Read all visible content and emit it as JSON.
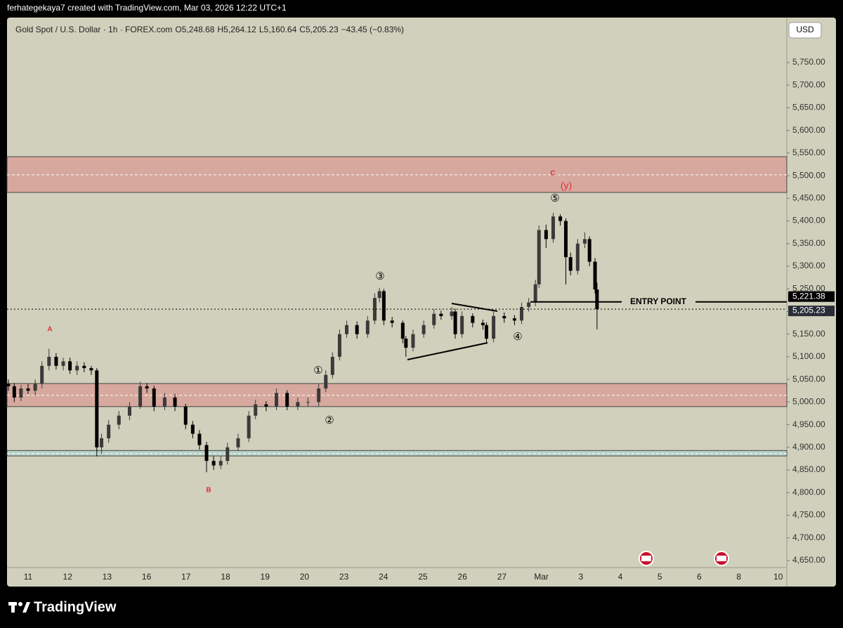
{
  "header": {
    "credit": "ferhategekaya7 created with TradingView.com, Mar 03, 2026 12:22 UTC+1"
  },
  "footer": {
    "brand": "TradingView"
  },
  "currency_button": "USD",
  "chart_data": {
    "type": "candlestick",
    "legend": {
      "symbol": "Gold Spot / U.S. Dollar · 1h · FOREX.com",
      "items": [
        {
          "key": "O",
          "value": "5,248.68"
        },
        {
          "key": "H",
          "value": "5,264.12"
        },
        {
          "key": "L",
          "value": "5,160.64"
        },
        {
          "key": "C",
          "value": "5,205.23"
        }
      ],
      "change": "−43.45 (−0.83%)"
    },
    "categories": [
      "11",
      "12",
      "13",
      "16",
      "17",
      "18",
      "19",
      "20",
      "23",
      "24",
      "25",
      "26",
      "27",
      "Mar",
      "3",
      "4",
      "5",
      "6",
      "8",
      "10"
    ],
    "ylim": [
      4592.5,
      5849.3
    ],
    "yticks": [
      {
        "value": 4650,
        "label": "4,650.00"
      },
      {
        "value": 4700,
        "label": "4,700.00"
      },
      {
        "value": 4750,
        "label": "4,750.00"
      },
      {
        "value": 4800,
        "label": "4,800.00"
      },
      {
        "value": 4850,
        "label": "4,850.00"
      },
      {
        "value": 4900,
        "label": "4,900.00"
      },
      {
        "value": 4950,
        "label": "4,950.00"
      },
      {
        "value": 5000,
        "label": "5,000.00"
      },
      {
        "value": 5050,
        "label": "5,050.00"
      },
      {
        "value": 5100,
        "label": "5,100.00"
      },
      {
        "value": 5150,
        "label": "5,150.00"
      },
      {
        "value": 5200,
        "label": "5,200.00"
      },
      {
        "value": 5250,
        "label": "5,250.00"
      },
      {
        "value": 5300,
        "label": "5,300.00"
      },
      {
        "value": 5350,
        "label": "5,350.00"
      },
      {
        "value": 5400,
        "label": "5,400.00"
      },
      {
        "value": 5450,
        "label": "5,450.00"
      },
      {
        "value": 5500,
        "label": "5,500.00"
      },
      {
        "value": 5550,
        "label": "5,550.00"
      },
      {
        "value": 5600,
        "label": "5,600.00"
      },
      {
        "value": 5650,
        "label": "5,650.00"
      },
      {
        "value": 5700,
        "label": "5,700.00"
      },
      {
        "value": 5750,
        "label": "5,750.00"
      }
    ],
    "up_color": "#3a3a3a",
    "down_color": "#000000",
    "candles": [
      [
        -0.5,
        5040,
        5050,
        5025,
        5035
      ],
      [
        -0.35,
        5035,
        5042,
        5000,
        5010
      ],
      [
        -0.18,
        5010,
        5038,
        5002,
        5030
      ],
      [
        0,
        5030,
        5040,
        5018,
        5025
      ],
      [
        0.18,
        5025,
        5050,
        5015,
        5040
      ],
      [
        0.35,
        5040,
        5090,
        5030,
        5080
      ],
      [
        0.53,
        5080,
        5118,
        5070,
        5100
      ],
      [
        0.71,
        5100,
        5108,
        5072,
        5080
      ],
      [
        0.89,
        5080,
        5098,
        5070,
        5090
      ],
      [
        1.06,
        5090,
        5098,
        5062,
        5070
      ],
      [
        1.24,
        5070,
        5090,
        5060,
        5080
      ],
      [
        1.42,
        5080,
        5088,
        5066,
        5075
      ],
      [
        1.6,
        5075,
        5080,
        5060,
        5070
      ],
      [
        1.74,
        5070,
        5075,
        4880,
        4900
      ],
      [
        1.86,
        4900,
        4930,
        4885,
        4920
      ],
      [
        2.04,
        4920,
        4960,
        4910,
        4950
      ],
      [
        2.3,
        4950,
        4980,
        4940,
        4970
      ],
      [
        2.57,
        4970,
        5000,
        4960,
        4990
      ],
      [
        2.84,
        4990,
        5045,
        4985,
        5035
      ],
      [
        3.01,
        5035,
        5042,
        5020,
        5030
      ],
      [
        3.19,
        5030,
        5036,
        4980,
        4990
      ],
      [
        3.46,
        4990,
        5020,
        4982,
        5010
      ],
      [
        3.72,
        5010,
        5018,
        4980,
        4990
      ],
      [
        3.99,
        4990,
        4996,
        4940,
        4950
      ],
      [
        4.17,
        4950,
        4958,
        4920,
        4930
      ],
      [
        4.34,
        4930,
        4938,
        4895,
        4905
      ],
      [
        4.52,
        4905,
        4912,
        4845,
        4870
      ],
      [
        4.7,
        4870,
        4880,
        4850,
        4860
      ],
      [
        4.88,
        4860,
        4880,
        4852,
        4870
      ],
      [
        5.05,
        4870,
        4910,
        4862,
        4900
      ],
      [
        5.32,
        4900,
        4930,
        4892,
        4920
      ],
      [
        5.59,
        4920,
        4980,
        4912,
        4970
      ],
      [
        5.76,
        4970,
        5005,
        4962,
        4995
      ],
      [
        6.03,
        4995,
        5002,
        4980,
        4990
      ],
      [
        6.29,
        4990,
        5030,
        4982,
        5020
      ],
      [
        6.56,
        5020,
        5026,
        4982,
        4990
      ],
      [
        6.83,
        4990,
        5010,
        4982,
        5000
      ],
      [
        7.09,
        5000,
        5010,
        4990,
        5000
      ],
      [
        7.36,
        5000,
        5040,
        4990,
        5030
      ],
      [
        7.54,
        5030,
        5070,
        5022,
        5060
      ],
      [
        7.71,
        5060,
        5110,
        5052,
        5100
      ],
      [
        7.89,
        5100,
        5160,
        5092,
        5150
      ],
      [
        8.07,
        5150,
        5180,
        5142,
        5170
      ],
      [
        8.33,
        5170,
        5178,
        5140,
        5150
      ],
      [
        8.6,
        5150,
        5190,
        5142,
        5180
      ],
      [
        8.78,
        5180,
        5240,
        5172,
        5230
      ],
      [
        8.9,
        5230,
        5252,
        5220,
        5245
      ],
      [
        9.01,
        5245,
        5250,
        5170,
        5180
      ],
      [
        9.22,
        5180,
        5188,
        5165,
        5175
      ],
      [
        9.49,
        5175,
        5180,
        5130,
        5140
      ],
      [
        9.57,
        5140,
        5146,
        5100,
        5120
      ],
      [
        9.75,
        5120,
        5160,
        5112,
        5150
      ],
      [
        10.02,
        5150,
        5180,
        5142,
        5170
      ],
      [
        10.28,
        5170,
        5205,
        5162,
        5195
      ],
      [
        10.46,
        5195,
        5202,
        5182,
        5190
      ],
      [
        10.73,
        5190,
        5210,
        5182,
        5200
      ],
      [
        10.82,
        5200,
        5206,
        5140,
        5150
      ],
      [
        10.99,
        5150,
        5200,
        5142,
        5190
      ],
      [
        11.26,
        5190,
        5196,
        5165,
        5175
      ],
      [
        11.52,
        5175,
        5182,
        5160,
        5170
      ],
      [
        11.61,
        5170,
        5176,
        5130,
        5140
      ],
      [
        11.79,
        5140,
        5200,
        5132,
        5190
      ],
      [
        12.06,
        5190,
        5198,
        5175,
        5185
      ],
      [
        12.32,
        5185,
        5192,
        5170,
        5180
      ],
      [
        12.5,
        5180,
        5220,
        5172,
        5210
      ],
      [
        12.68,
        5210,
        5230,
        5200,
        5220
      ],
      [
        12.85,
        5220,
        5270,
        5212,
        5260
      ],
      [
        12.94,
        5260,
        5390,
        5252,
        5380
      ],
      [
        13.12,
        5380,
        5392,
        5340,
        5360
      ],
      [
        13.3,
        5360,
        5418,
        5352,
        5410
      ],
      [
        13.48,
        5410,
        5415,
        5390,
        5400
      ],
      [
        13.62,
        5400,
        5406,
        5260,
        5320
      ],
      [
        13.74,
        5320,
        5330,
        5280,
        5290
      ],
      [
        13.92,
        5290,
        5360,
        5282,
        5350
      ],
      [
        14.1,
        5350,
        5375,
        5340,
        5360
      ],
      [
        14.22,
        5360,
        5366,
        5300,
        5310
      ],
      [
        14.36,
        5310,
        5318,
        5240,
        5248.68
      ],
      [
        14.41,
        5248.68,
        5264.12,
        5160.64,
        5205.23
      ]
    ],
    "zones": [
      {
        "top": 5542,
        "bottom": 5463,
        "mid": 5502,
        "color": "#d6a89e"
      },
      {
        "top": 5041,
        "bottom": 4990,
        "mid": 5015,
        "color": "#d6a89e"
      },
      {
        "top": 4893,
        "bottom": 4881,
        "mid": 4886,
        "color": "#b8d2c6"
      }
    ],
    "entry": {
      "value": 5221.38,
      "label": "5,221.38",
      "text": "ENTRY POINT"
    },
    "last_price": {
      "value": 5205.23,
      "label": "5,205.23"
    },
    "annotations": [
      "①",
      "②",
      "③",
      "④",
      "⑤",
      "A",
      "B",
      "C",
      "(y)"
    ]
  }
}
